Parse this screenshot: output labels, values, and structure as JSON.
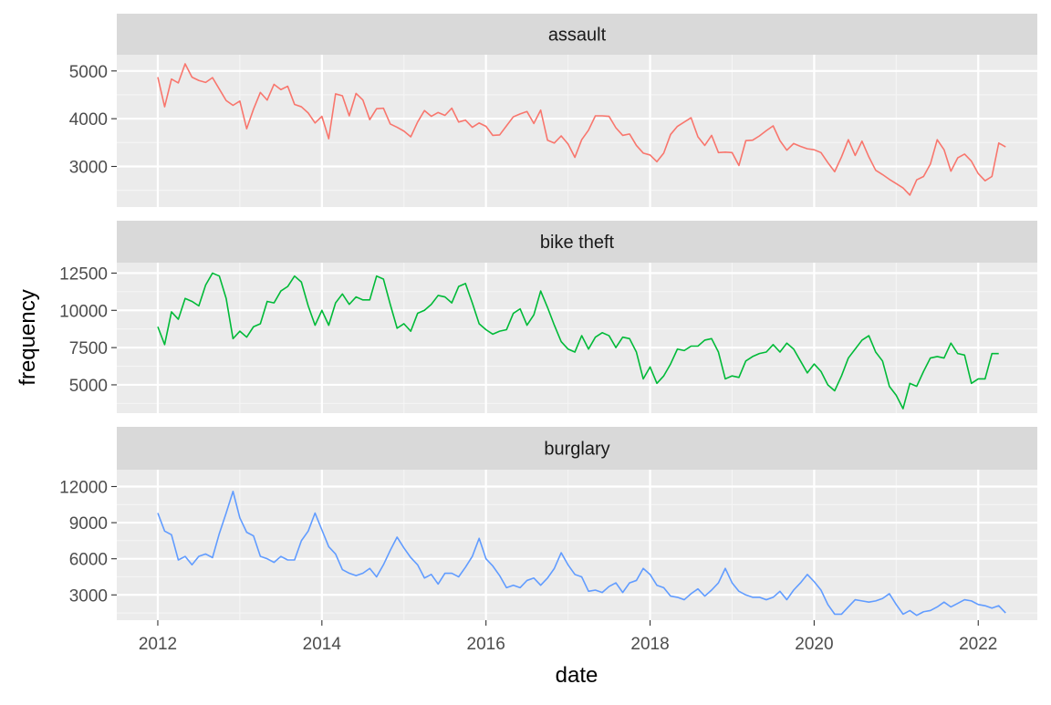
{
  "chart_data": {
    "type": "line",
    "layout": "facet-rows",
    "xlabel": "date",
    "ylabel": "frequency",
    "x_ticks": [
      2012,
      2014,
      2016,
      2018,
      2020,
      2022
    ],
    "x_range": [
      2011.5,
      2022.72
    ],
    "grid": true,
    "legend": "none",
    "panels": [
      {
        "name": "assault",
        "color": "#F8766D",
        "ylim": [
          2150,
          5340
        ],
        "y_ticks": [
          3000,
          4000,
          5000
        ],
        "y_tick_labels": [
          "3000",
          "4000",
          "5000"
        ],
        "values": [
          4870,
          4250,
          4830,
          4750,
          5150,
          4870,
          4800,
          4760,
          4860,
          4620,
          4380,
          4280,
          4370,
          3790,
          4200,
          4550,
          4390,
          4720,
          4610,
          4680,
          4300,
          4250,
          4120,
          3910,
          4050,
          3580,
          4520,
          4480,
          4060,
          4530,
          4390,
          3980,
          4210,
          4220,
          3890,
          3820,
          3740,
          3620,
          3930,
          4170,
          4050,
          4130,
          4070,
          4220,
          3930,
          3970,
          3820,
          3910,
          3840,
          3650,
          3660,
          3850,
          4040,
          4100,
          4150,
          3900,
          4180,
          3550,
          3490,
          3640,
          3470,
          3190,
          3560,
          3760,
          4060,
          4060,
          4050,
          3810,
          3650,
          3680,
          3440,
          3280,
          3240,
          3100,
          3280,
          3670,
          3840,
          3930,
          4020,
          3620,
          3440,
          3650,
          3290,
          3300,
          3290,
          3020,
          3540,
          3550,
          3640,
          3750,
          3850,
          3540,
          3340,
          3480,
          3420,
          3370,
          3350,
          3290,
          3080,
          2890,
          3200,
          3560,
          3230,
          3530,
          3200,
          2920,
          2830,
          2730,
          2640,
          2550,
          2400,
          2720,
          2790,
          3050,
          3560,
          3350,
          2900,
          3180,
          3260,
          3110,
          2850,
          2700,
          2790,
          3490,
          3410
        ]
      },
      {
        "name": "bike theft",
        "color": "#00BA38",
        "ylim": [
          3100,
          13200
        ],
        "y_ticks": [
          5000,
          7500,
          10000,
          12500
        ],
        "y_tick_labels": [
          "5000",
          "7500",
          "10000",
          "12500"
        ],
        "values": [
          8900,
          7700,
          9900,
          9400,
          10800,
          10600,
          10300,
          11700,
          12500,
          12300,
          10800,
          8100,
          8600,
          8200,
          8900,
          9100,
          10600,
          10500,
          11300,
          11600,
          12300,
          11900,
          10300,
          9000,
          10000,
          9000,
          10500,
          11100,
          10400,
          10900,
          10700,
          10700,
          12300,
          12100,
          10400,
          8800,
          9100,
          8600,
          9800,
          10000,
          10400,
          11000,
          10900,
          10500,
          11600,
          11800,
          10500,
          9100,
          8700,
          8400,
          8600,
          8700,
          9800,
          10100,
          9000,
          9700,
          11300,
          10200,
          9000,
          7900,
          7400,
          7200,
          8300,
          7400,
          8200,
          8500,
          8300,
          7500,
          8200,
          8100,
          7200,
          5400,
          6200,
          5100,
          5600,
          6400,
          7400,
          7300,
          7600,
          7600,
          8000,
          8100,
          7200,
          5400,
          5600,
          5500,
          6600,
          6900,
          7100,
          7200,
          7700,
          7200,
          7800,
          7400,
          6600,
          5800,
          6400,
          5900,
          5000,
          4600,
          5600,
          6800,
          7400,
          8000,
          8300,
          7200,
          6600,
          4900,
          4300,
          3400,
          5100,
          4900,
          5900,
          6800,
          6900,
          6800,
          7800,
          7100,
          7000,
          5100,
          5400,
          5400,
          7100,
          7100
        ]
      },
      {
        "name": "burglary",
        "color": "#619CFF",
        "ylim": [
          900,
          13400
        ],
        "y_ticks": [
          3000,
          6000,
          9000,
          12000
        ],
        "y_tick_labels": [
          "3000",
          "6000",
          "9000",
          "12000"
        ],
        "values": [
          9800,
          8300,
          8000,
          5900,
          6200,
          5500,
          6200,
          6400,
          6100,
          8100,
          9800,
          11600,
          9400,
          8200,
          7900,
          6200,
          6000,
          5700,
          6200,
          5900,
          5900,
          7500,
          8300,
          9800,
          8400,
          7000,
          6400,
          5100,
          4800,
          4600,
          4800,
          5200,
          4500,
          5500,
          6700,
          7800,
          6900,
          6100,
          5500,
          4400,
          4700,
          3900,
          4800,
          4800,
          4500,
          5300,
          6200,
          7700,
          6000,
          5400,
          4600,
          3600,
          3800,
          3600,
          4200,
          4400,
          3800,
          4400,
          5200,
          6500,
          5500,
          4700,
          4500,
          3300,
          3400,
          3200,
          3700,
          4000,
          3200,
          4000,
          4200,
          5200,
          4700,
          3800,
          3600,
          2900,
          2800,
          2600,
          3100,
          3500,
          2900,
          3400,
          4000,
          5200,
          4000,
          3300,
          3000,
          2800,
          2800,
          2600,
          2800,
          3300,
          2600,
          3400,
          4000,
          4700,
          4100,
          3400,
          2200,
          1400,
          1400,
          2000,
          2600,
          2500,
          2400,
          2500,
          2700,
          3100,
          2200,
          1400,
          1700,
          1300,
          1600,
          1700,
          2000,
          2400,
          2000,
          2300,
          2600,
          2500,
          2200,
          2100,
          1900,
          2100,
          1500
        ]
      }
    ]
  }
}
